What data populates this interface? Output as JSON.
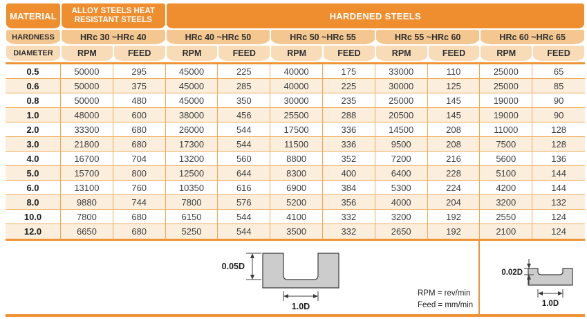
{
  "table": {
    "corner": {
      "material": "MATERIAL",
      "hardness": "HARDNESS",
      "diameter": "DIAMETER"
    },
    "groups": [
      {
        "title": "ALLOY STEELS HEAT RESISTANT STEELS"
      },
      {
        "title": "HARDENED STEELS"
      }
    ],
    "hardness_ranges": [
      "HRc 30 ~HRc 40",
      "HRc 40 ~HRc 50",
      "HRc 50 ~HRc 55",
      "HRc 55 ~HRc 60",
      "HRc 60 ~HRc 65"
    ],
    "rpm_label": "RPM",
    "feed_label": "FEED",
    "rows": [
      {
        "diameter": "0.5",
        "values": [
          50000,
          295,
          45000,
          225,
          40000,
          175,
          33000,
          110,
          25000,
          65
        ]
      },
      {
        "diameter": "0.6",
        "values": [
          50000,
          375,
          45000,
          285,
          40000,
          225,
          30000,
          125,
          25000,
          85
        ]
      },
      {
        "diameter": "0.8",
        "values": [
          50000,
          480,
          45000,
          350,
          30000,
          235,
          25000,
          145,
          19000,
          90
        ]
      },
      {
        "diameter": "1.0",
        "values": [
          48000,
          600,
          38000,
          456,
          25500,
          288,
          20500,
          145,
          19000,
          90
        ]
      },
      {
        "diameter": "2.0",
        "values": [
          33300,
          680,
          26000,
          544,
          17500,
          336,
          14500,
          208,
          11000,
          128
        ]
      },
      {
        "diameter": "3.0",
        "values": [
          21800,
          680,
          17300,
          544,
          11500,
          336,
          9500,
          208,
          7500,
          128
        ]
      },
      {
        "diameter": "4.0",
        "values": [
          16700,
          704,
          13200,
          560,
          8800,
          352,
          7200,
          216,
          5600,
          136
        ]
      },
      {
        "diameter": "5.0",
        "values": [
          15700,
          800,
          12500,
          644,
          8300,
          400,
          6400,
          228,
          5100,
          144
        ]
      },
      {
        "diameter": "6.0",
        "values": [
          13100,
          760,
          10350,
          616,
          6900,
          384,
          5300,
          224,
          4200,
          144
        ]
      },
      {
        "diameter": "8.0",
        "values": [
          9880,
          744,
          7800,
          576,
          5200,
          356,
          4000,
          204,
          3200,
          132
        ]
      },
      {
        "diameter": "10.0",
        "values": [
          7800,
          680,
          6150,
          544,
          4100,
          332,
          3200,
          192,
          2550,
          124
        ]
      },
      {
        "diameter": "12.0",
        "values": [
          6650,
          680,
          5250,
          544,
          3500,
          332,
          2650,
          192,
          2100,
          124
        ]
      }
    ]
  },
  "diagrams": {
    "slot_full_depth": {
      "depth_label": "0.05D",
      "width_label": "1.0D"
    },
    "slot_shallow_depth": {
      "depth_label": "0.02D",
      "width_label": "1.0D"
    }
  },
  "legend": {
    "rpm": "RPM = rev/min",
    "feed": "Feed = mm/min"
  },
  "colors": {
    "header_orange": "#EE8E2F",
    "hardness_row": "#F3C78F",
    "unit_row": "#F8DCB8",
    "grid_line": "#F2A952",
    "thick_line": "#EF9336",
    "alt_row": "#FBEEDC",
    "diagram_fill": "#CCCCCC"
  }
}
